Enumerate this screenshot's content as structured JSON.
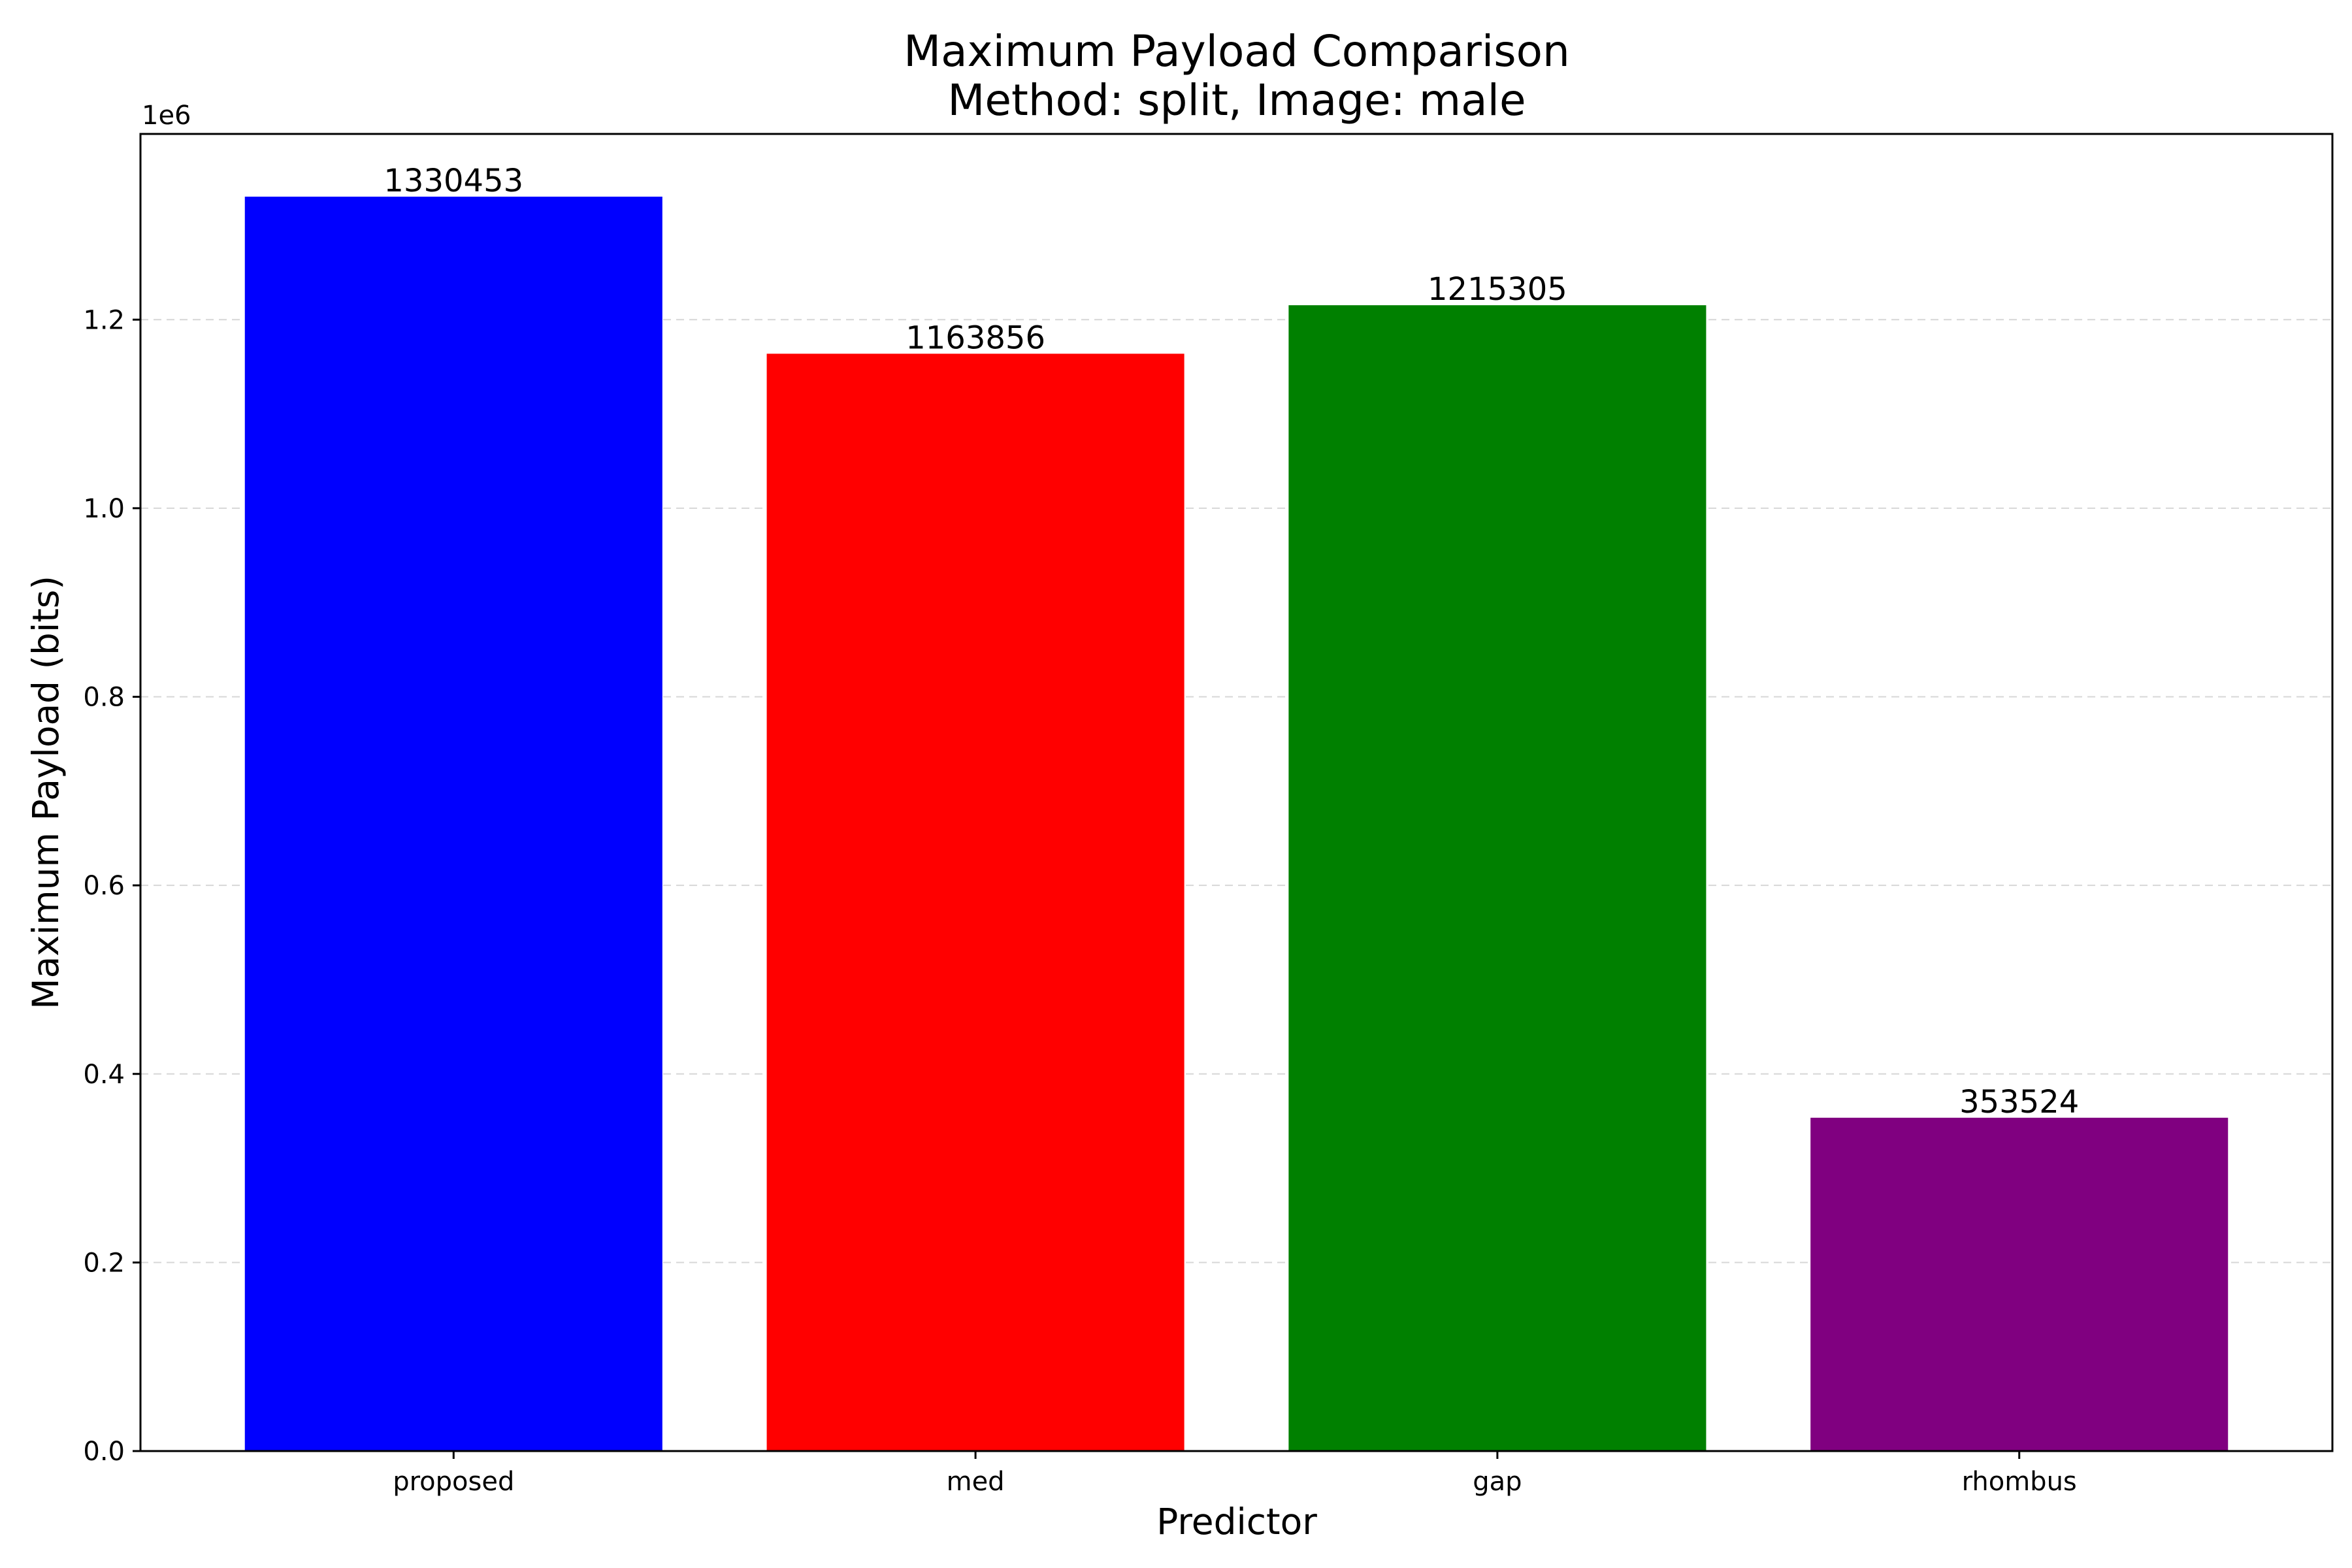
{
  "chart_data": {
    "type": "bar",
    "title_line1": "Maximum Payload Comparison",
    "title_line2": "Method: split, Image: male",
    "xlabel": "Predictor",
    "ylabel": "Maximum Payload (bits)",
    "y_offset_label": "1e6",
    "categories": [
      "proposed",
      "med",
      "gap",
      "rhombus"
    ],
    "values": [
      1330453,
      1163856,
      1215305,
      353524
    ],
    "value_labels": [
      "1330453",
      "1163856",
      "1215305",
      "353524"
    ],
    "colors": [
      "#0000ff",
      "#ff0000",
      "#008000",
      "#800080"
    ],
    "ylim": [
      0,
      1396975.65
    ],
    "yticks": [
      0,
      200000,
      400000,
      600000,
      800000,
      1000000,
      1200000
    ],
    "ytick_labels": [
      "0.0",
      "0.2",
      "0.4",
      "0.6",
      "0.8",
      "1.0",
      "1.2"
    ],
    "grid": "y-dashed"
  }
}
